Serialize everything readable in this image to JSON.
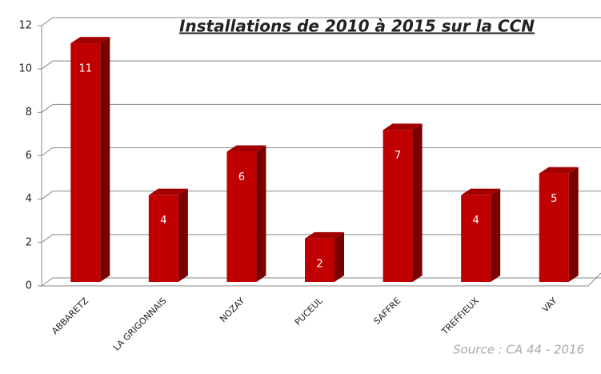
{
  "chart_data": {
    "type": "bar3d",
    "title": "Installations de 2010 à 2015 sur la CCN",
    "categories": [
      "ABBARETZ",
      "LA GRIGONNAIS",
      "NOZAY",
      "PUCEUL",
      "SAFFRE",
      "TREFFIEUX",
      "VAY"
    ],
    "values": [
      11,
      4,
      6,
      2,
      7,
      4,
      5
    ],
    "color": "#c00000",
    "ylim": [
      0,
      12
    ],
    "yticks": [
      0,
      2,
      4,
      6,
      8,
      10,
      12
    ],
    "grid": true,
    "source": "Source : CA 44 - 2016"
  }
}
